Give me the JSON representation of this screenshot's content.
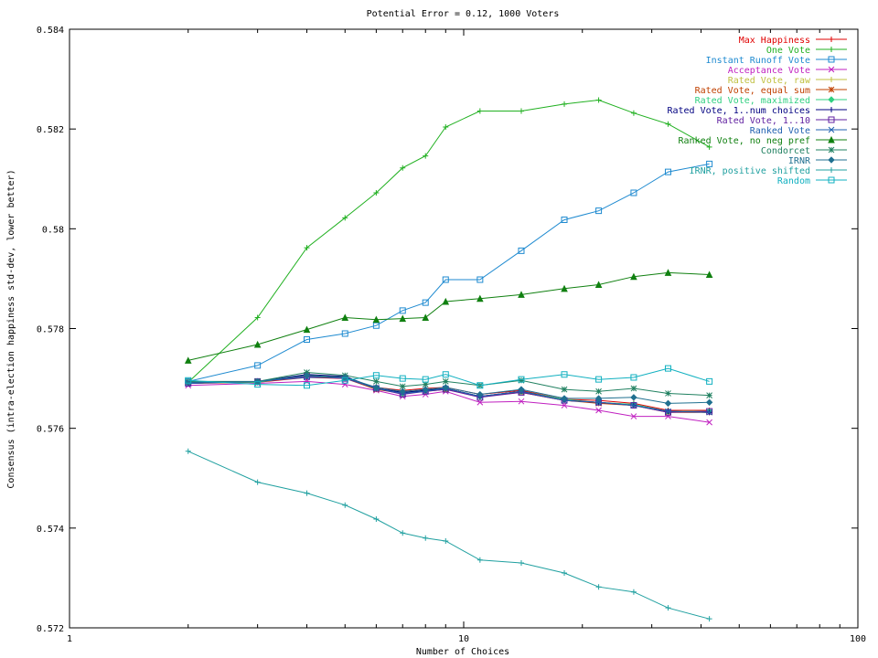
{
  "chart_data": {
    "type": "line",
    "title": "Potential Error = 0.12, 1000 Voters",
    "xlabel": "Number of Choices",
    "ylabel": "Consensus (intra-election happiness std-dev, lower better)",
    "xscale": "log",
    "xlim": [
      1,
      100
    ],
    "ylim": [
      0.572,
      0.584
    ],
    "xticks": [
      1,
      10,
      100
    ],
    "xtick_labels": [
      "1",
      "10",
      "100"
    ],
    "yticks": [
      0.572,
      0.574,
      0.576,
      0.578,
      0.58,
      0.582,
      0.584
    ],
    "ytick_labels": [
      "0.572",
      "0.574",
      "0.576",
      "0.578",
      "0.58",
      "0.582",
      "0.584"
    ],
    "grid": false,
    "legend_position": "top-right",
    "x": [
      2,
      3,
      4,
      5,
      6,
      7,
      8,
      9,
      11,
      14,
      18,
      22,
      27,
      33,
      42
    ],
    "series": [
      {
        "name": "Max Happiness",
        "color": "#e00000",
        "marker": "plus",
        "values": [
          0.57692,
          0.57692,
          0.57702,
          0.577,
          0.57682,
          0.57676,
          0.5768,
          0.57682,
          0.57668,
          0.57676,
          0.57658,
          0.57656,
          0.5765,
          0.57636,
          0.57636
        ]
      },
      {
        "name": "One Vote",
        "color": "#20b020",
        "marker": "plus",
        "values": [
          0.57692,
          0.57822,
          0.57962,
          0.58022,
          0.58072,
          0.58122,
          0.58146,
          0.58204,
          0.58236,
          0.58236,
          0.5825,
          0.58258,
          0.58232,
          0.5821,
          0.58164
        ]
      },
      {
        "name": "Instant Runoff Vote",
        "color": "#1e8ad0",
        "marker": "square",
        "values": [
          0.57694,
          0.57726,
          0.57778,
          0.5779,
          0.57806,
          0.57836,
          0.57852,
          0.57898,
          0.57898,
          0.57956,
          0.58018,
          0.58036,
          0.58072,
          0.58114,
          0.5813
        ]
      },
      {
        "name": "Acceptance Vote",
        "color": "#c020c0",
        "marker": "x",
        "values": [
          0.57686,
          0.5769,
          0.57694,
          0.57688,
          0.57676,
          0.57664,
          0.57668,
          0.57674,
          0.57652,
          0.57654,
          0.57646,
          0.57636,
          0.57624,
          0.57624,
          0.57612
        ]
      },
      {
        "name": "Rated Vote, raw",
        "color": "#c0c040",
        "marker": "plus",
        "values": [
          0.5769,
          0.57692,
          0.57708,
          0.57702,
          0.5768,
          0.57672,
          0.57676,
          0.5768,
          0.57664,
          0.57672,
          0.57656,
          0.57652,
          0.57646,
          0.57634,
          0.57632
        ]
      },
      {
        "name": "Rated Vote, equal sum",
        "color": "#c04000",
        "marker": "star",
        "values": [
          0.5769,
          0.57692,
          0.57706,
          0.577,
          0.57678,
          0.5767,
          0.57674,
          0.57678,
          0.57664,
          0.57672,
          0.57656,
          0.5765,
          0.57646,
          0.57632,
          0.57632
        ]
      },
      {
        "name": "Rated Vote, maximized",
        "color": "#30d080",
        "marker": "diamond",
        "values": [
          0.57692,
          0.57692,
          0.57706,
          0.577,
          0.5768,
          0.5767,
          0.57676,
          0.5768,
          0.57664,
          0.57674,
          0.57658,
          0.57652,
          0.57648,
          0.57634,
          0.57634
        ]
      },
      {
        "name": "Rated Vote, 1..num choices",
        "color": "#000080",
        "marker": "plus",
        "values": [
          0.5769,
          0.57694,
          0.57708,
          0.57704,
          0.5768,
          0.57672,
          0.57676,
          0.5768,
          0.57664,
          0.57674,
          0.57656,
          0.57652,
          0.57646,
          0.57634,
          0.57632
        ]
      },
      {
        "name": "Rated Vote, 1..10",
        "color": "#6020a0",
        "marker": "square",
        "values": [
          0.5769,
          0.57694,
          0.57704,
          0.577,
          0.5768,
          0.57668,
          0.57674,
          0.57678,
          0.57662,
          0.57672,
          0.57656,
          0.57652,
          0.57646,
          0.57632,
          0.57634
        ]
      },
      {
        "name": "Ranked Vote",
        "color": "#2060b0",
        "marker": "x",
        "values": [
          0.5769,
          0.57694,
          0.57702,
          0.57702,
          0.5768,
          0.5767,
          0.57674,
          0.5768,
          0.57664,
          0.57674,
          0.57656,
          0.57652,
          0.57646,
          0.57634,
          0.57632
        ]
      },
      {
        "name": "Ranked Vote, no neg pref",
        "color": "#108010",
        "marker": "triangle",
        "values": [
          0.57736,
          0.57768,
          0.57798,
          0.57822,
          0.57818,
          0.5782,
          0.57822,
          0.57854,
          0.5786,
          0.57868,
          0.5788,
          0.57888,
          0.57904,
          0.57912,
          0.57908
        ]
      },
      {
        "name": "Condorcet",
        "color": "#208060",
        "marker": "star",
        "values": [
          0.57694,
          0.57694,
          0.57712,
          0.57706,
          0.57694,
          0.57684,
          0.57688,
          0.57694,
          0.57686,
          0.57696,
          0.57678,
          0.57674,
          0.5768,
          0.5767,
          0.57666
        ]
      },
      {
        "name": "IRNR",
        "color": "#207090",
        "marker": "diamond",
        "values": [
          0.57692,
          0.57694,
          0.57706,
          0.57702,
          0.57682,
          0.57674,
          0.57678,
          0.57682,
          0.57668,
          0.57678,
          0.5766,
          0.5766,
          0.57662,
          0.5765,
          0.57652
        ]
      },
      {
        "name": "IRNR, positive shifted",
        "color": "#20a0a0",
        "marker": "plus",
        "values": [
          0.57554,
          0.57492,
          0.5747,
          0.57446,
          0.57418,
          0.5739,
          0.5738,
          0.57374,
          0.57336,
          0.5733,
          0.5731,
          0.57282,
          0.57272,
          0.5724,
          0.57218
        ]
      },
      {
        "name": "Random",
        "color": "#10b0c0",
        "marker": "square",
        "values": [
          0.57696,
          0.57688,
          0.57686,
          0.57696,
          0.57706,
          0.577,
          0.57698,
          0.57708,
          0.57686,
          0.57698,
          0.57708,
          0.57698,
          0.57702,
          0.5772,
          0.57694
        ]
      }
    ]
  }
}
